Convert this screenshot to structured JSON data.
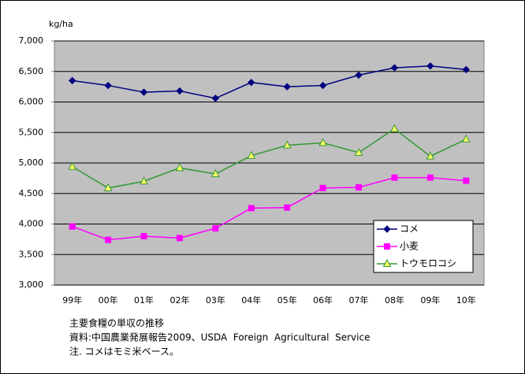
{
  "chart_data": {
    "type": "line",
    "y_label": "kg/ha",
    "categories": [
      "99年",
      "00年",
      "01年",
      "02年",
      "03年",
      "04年",
      "05年",
      "06年",
      "07年",
      "08年",
      "09年",
      "10年"
    ],
    "series": [
      {
        "name": "コメ",
        "color": "#000080",
        "marker": "diamond",
        "marker_fill": "#000080",
        "values": [
          6350,
          6270,
          6160,
          6180,
          6060,
          6320,
          6250,
          6270,
          6440,
          6560,
          6590,
          6530
        ]
      },
      {
        "name": "小麦",
        "color": "#ff00ff",
        "marker": "square",
        "marker_fill": "#ff00ff",
        "values": [
          3960,
          3740,
          3800,
          3770,
          3930,
          4260,
          4270,
          4590,
          4600,
          4760,
          4760,
          4710
        ]
      },
      {
        "name": "トウモロコシ",
        "color": "#339933",
        "marker": "triangle",
        "marker_fill": "#ffff66",
        "values": [
          4940,
          4590,
          4700,
          4920,
          4820,
          5120,
          5290,
          5330,
          5170,
          5560,
          5110,
          5390
        ]
      }
    ],
    "ylim": [
      3000,
      7000
    ],
    "yticks": [
      {
        "value": 3000,
        "label": "3,000"
      },
      {
        "value": 3500,
        "label": "3,500"
      },
      {
        "value": 4000,
        "label": "4,000"
      },
      {
        "value": 4500,
        "label": "4,500"
      },
      {
        "value": 5000,
        "label": "5,000"
      },
      {
        "value": 5500,
        "label": "5,500"
      },
      {
        "value": 6000,
        "label": "6,000"
      },
      {
        "value": 6500,
        "label": "6,500"
      },
      {
        "value": 7000,
        "label": "7,000"
      }
    ],
    "grid": true,
    "legend_position": "lower right",
    "notes": [
      "主要食糧の単収の推移",
      "資料:中国農業発展報告2009、USDA  Foreign  Agricultural  Service",
      "注. コメはモミ米ベース。"
    ]
  }
}
